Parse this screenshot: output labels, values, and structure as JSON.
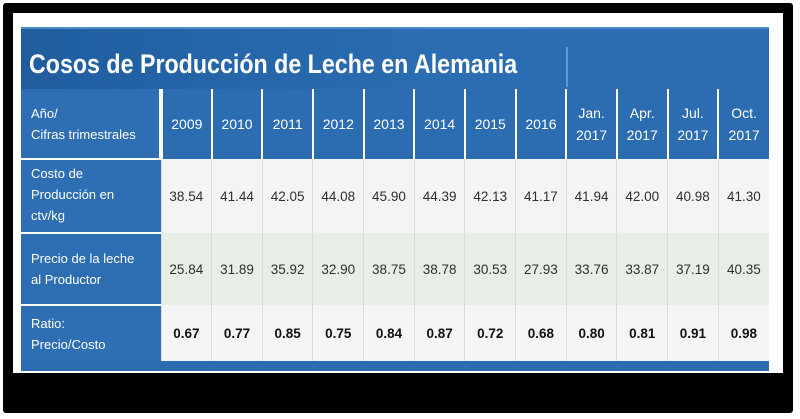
{
  "title": "Cosos de Producción de Leche en Alemania",
  "header": {
    "label_line1": "Año/",
    "label_line2": "Cifras trimestrales",
    "periods": [
      {
        "line1": "2009",
        "line2": ""
      },
      {
        "line1": "2010",
        "line2": ""
      },
      {
        "line1": "2011",
        "line2": ""
      },
      {
        "line1": "2012",
        "line2": ""
      },
      {
        "line1": "2013",
        "line2": ""
      },
      {
        "line1": "2014",
        "line2": ""
      },
      {
        "line1": "2015",
        "line2": ""
      },
      {
        "line1": "2016",
        "line2": ""
      },
      {
        "line1": "Jan.",
        "line2": "2017"
      },
      {
        "line1": "Apr.",
        "line2": "2017"
      },
      {
        "line1": "Jul.",
        "line2": "2017"
      },
      {
        "line1": "Oct.",
        "line2": "2017"
      }
    ]
  },
  "rows": [
    {
      "label_lines": [
        "Costo de",
        "Producción en",
        "ctv/kg"
      ],
      "values": [
        "38.54",
        "41.44",
        "42.05",
        "44.08",
        "45.90",
        "44.39",
        "42.13",
        "41.17",
        "41.94",
        "42.00",
        "40.98",
        "41.30"
      ]
    },
    {
      "label_lines": [
        "Precio de la leche",
        "al Productor"
      ],
      "values": [
        "25.84",
        "31.89",
        "35.92",
        "32.90",
        "38.75",
        "38.78",
        "30.53",
        "27.93",
        "33.76",
        "33.87",
        "37.19",
        "40.35"
      ]
    },
    {
      "label_lines": [
        "Ratio:",
        "Precio/Costo"
      ],
      "values": [
        "0.67",
        "0.77",
        "0.85",
        "0.75",
        "0.84",
        "0.87",
        "0.72",
        "0.68",
        "0.80",
        "0.81",
        "0.91",
        "0.98"
      ]
    }
  ]
}
